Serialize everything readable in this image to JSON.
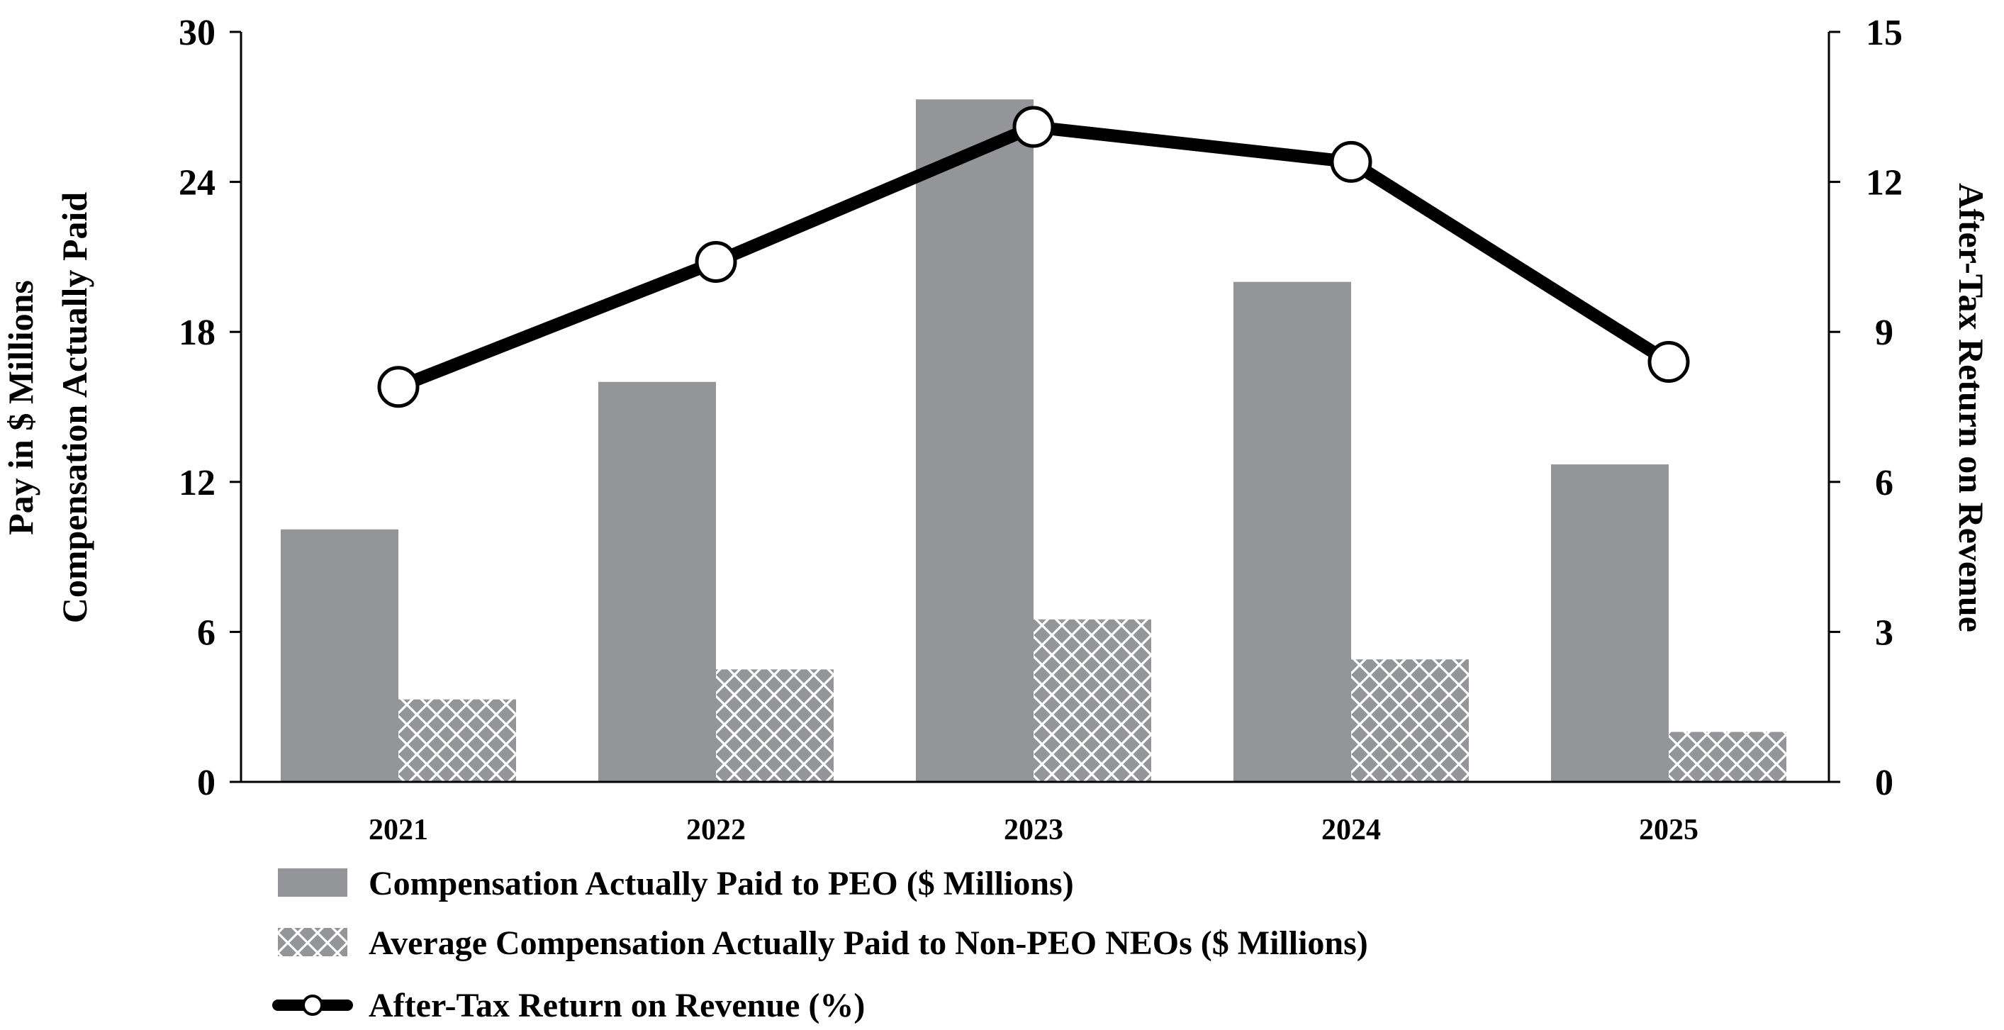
{
  "chart_data": {
    "type": "bar",
    "categories": [
      "2021",
      "2022",
      "2023",
      "2024",
      "2025"
    ],
    "series": [
      {
        "name": "Compensation Actually Paid to PEO ($ Millions)",
        "kind": "bar",
        "axis": "left",
        "color": "#939598",
        "values": [
          10.1,
          16.0,
          27.3,
          20.0,
          12.7
        ]
      },
      {
        "name": "Average Compensation Actually Paid to Non-PEO NEOs ($ Millions)",
        "kind": "bar",
        "axis": "left",
        "color": "#939598",
        "pattern": "crosshatch",
        "values": [
          3.3,
          4.5,
          6.5,
          4.9,
          2.0
        ]
      },
      {
        "name": "After-Tax Return on Revenue (%)",
        "kind": "line",
        "axis": "right",
        "color": "#000000",
        "values": [
          7.9,
          10.4,
          13.1,
          12.4,
          8.4
        ]
      }
    ],
    "left_axis": {
      "label_lines": [
        "Compensation Actually Paid",
        "Pay in $ Millions"
      ],
      "ylim": [
        0,
        30
      ],
      "ticks": [
        "0",
        "6",
        "12",
        "18",
        "24",
        "30"
      ]
    },
    "right_axis": {
      "label": "After-Tax Return on Revenue",
      "ylim": [
        0,
        15
      ],
      "ticks": [
        "0",
        "3",
        "6",
        "9",
        "12",
        "15"
      ]
    },
    "legend_position": "bottom-left",
    "grid": false
  }
}
